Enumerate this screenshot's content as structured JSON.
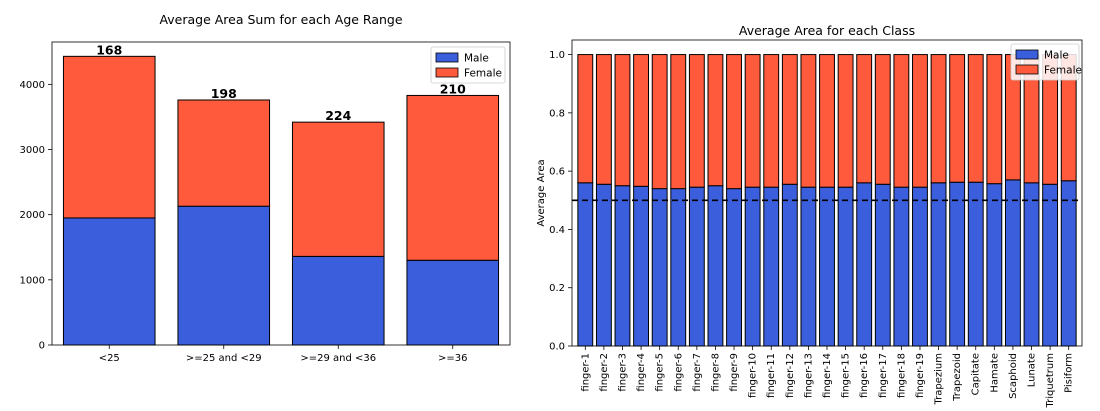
{
  "colors": {
    "male": "#3b5fdc",
    "female": "#ff5a3c",
    "edge": "#000000"
  },
  "chart_data": [
    {
      "type": "bar",
      "stacked": true,
      "title": "Average Area Sum for each Age Range",
      "xlabel": "",
      "ylabel": "",
      "categories": [
        "<25",
        ">=25 and <29",
        ">=29 and <36",
        ">=36"
      ],
      "series": [
        {
          "name": "Male",
          "values": [
            1950,
            2130,
            1360,
            1300
          ]
        },
        {
          "name": "Female",
          "values": [
            2480,
            1630,
            2060,
            2530
          ]
        }
      ],
      "data_labels": [
        "168",
        "198",
        "224",
        "210"
      ],
      "ylim": [
        0,
        4650
      ],
      "yticks": [
        0,
        1000,
        2000,
        3000,
        4000
      ],
      "legend": "top-right",
      "grid": false
    },
    {
      "type": "bar",
      "stacked": true,
      "title": "Average Area for each Class",
      "xlabel": "",
      "ylabel": "Average Area",
      "categories": [
        "finger-1",
        "finger-2",
        "finger-3",
        "finger-4",
        "finger-5",
        "finger-6",
        "finger-7",
        "finger-8",
        "finger-9",
        "finger-10",
        "finger-11",
        "finger-12",
        "finger-13",
        "finger-14",
        "finger-15",
        "finger-16",
        "finger-17",
        "finger-18",
        "finger-19",
        "Trapezium",
        "Trapezoid",
        "Capitate",
        "Hamate",
        "Scaphoid",
        "Lunate",
        "Triquetrum",
        "Pisiform"
      ],
      "series": [
        {
          "name": "Male",
          "values": [
            0.56,
            0.555,
            0.55,
            0.548,
            0.54,
            0.54,
            0.545,
            0.55,
            0.54,
            0.545,
            0.545,
            0.555,
            0.545,
            0.545,
            0.545,
            0.56,
            0.555,
            0.545,
            0.545,
            0.56,
            0.562,
            0.562,
            0.557,
            0.57,
            0.56,
            0.555,
            0.567
          ]
        },
        {
          "name": "Female",
          "values": [
            0.44,
            0.445,
            0.45,
            0.452,
            0.46,
            0.46,
            0.455,
            0.45,
            0.46,
            0.455,
            0.455,
            0.445,
            0.455,
            0.455,
            0.455,
            0.44,
            0.445,
            0.455,
            0.455,
            0.44,
            0.438,
            0.438,
            0.443,
            0.43,
            0.44,
            0.445,
            0.433
          ]
        }
      ],
      "reference_line": 0.5,
      "ylim": [
        0,
        1.05
      ],
      "yticks": [
        0.0,
        0.2,
        0.4,
        0.6,
        0.8,
        1.0
      ],
      "legend": "top-right",
      "grid": false
    }
  ]
}
